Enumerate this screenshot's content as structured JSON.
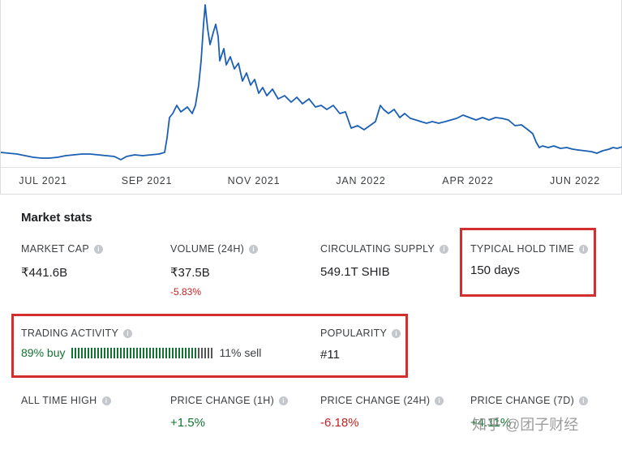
{
  "chart": {
    "x_ticks": [
      "JUL 2021",
      "SEP 2021",
      "NOV 2021",
      "JAN 2022",
      "APR 2022",
      "JUN 2022"
    ],
    "line_color": "#1a5fb4"
  },
  "market_stats": {
    "title": "Market stats",
    "market_cap": {
      "label": "MARKET CAP",
      "value": "₹441.6B"
    },
    "volume": {
      "label": "VOLUME (24H)",
      "value": "₹37.5B",
      "change": "-5.83%"
    },
    "circulating_supply": {
      "label": "CIRCULATING SUPPLY",
      "value": "549.1T SHIB"
    },
    "typical_hold_time": {
      "label": "TYPICAL HOLD TIME",
      "value": "150 days"
    },
    "trading_activity": {
      "label": "TRADING ACTIVITY",
      "buy": "89% buy",
      "sell": "11% sell",
      "buy_fraction": 0.89
    },
    "popularity": {
      "label": "POPULARITY",
      "value": "#11"
    },
    "all_time_high": {
      "label": "ALL TIME HIGH"
    },
    "price_change_1h": {
      "label": "PRICE CHANGE (1H)",
      "value": "+1.5%"
    },
    "price_change_24h": {
      "label": "PRICE CHANGE (24H)",
      "value": "-6.18%"
    },
    "price_change_7d": {
      "label": "PRICE CHANGE (7D)",
      "value": "+4.11%"
    }
  },
  "watermark": "知乎 @团子财经",
  "colors": {
    "highlight": "#d32f2f",
    "negative": "#c5221f",
    "positive": "#137333"
  }
}
